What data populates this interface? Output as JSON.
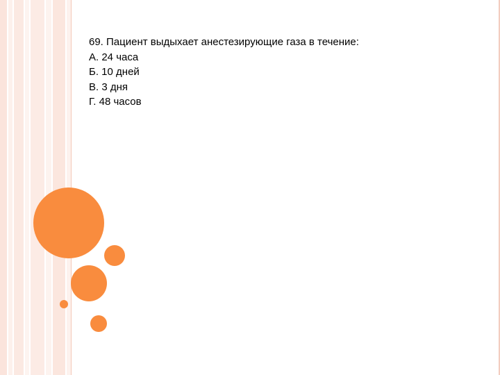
{
  "question": "69. Пациент выдыхает анестезирующие газа в течение:",
  "options": [
    "А. 24 часа",
    "Б. 10 дней",
    "В. 3 дня",
    "Г. 48 часов"
  ],
  "colors": {
    "accent": "#f98c3e",
    "stripe": "#fbe4dc",
    "background": "#ffffff",
    "text": "#000000"
  }
}
